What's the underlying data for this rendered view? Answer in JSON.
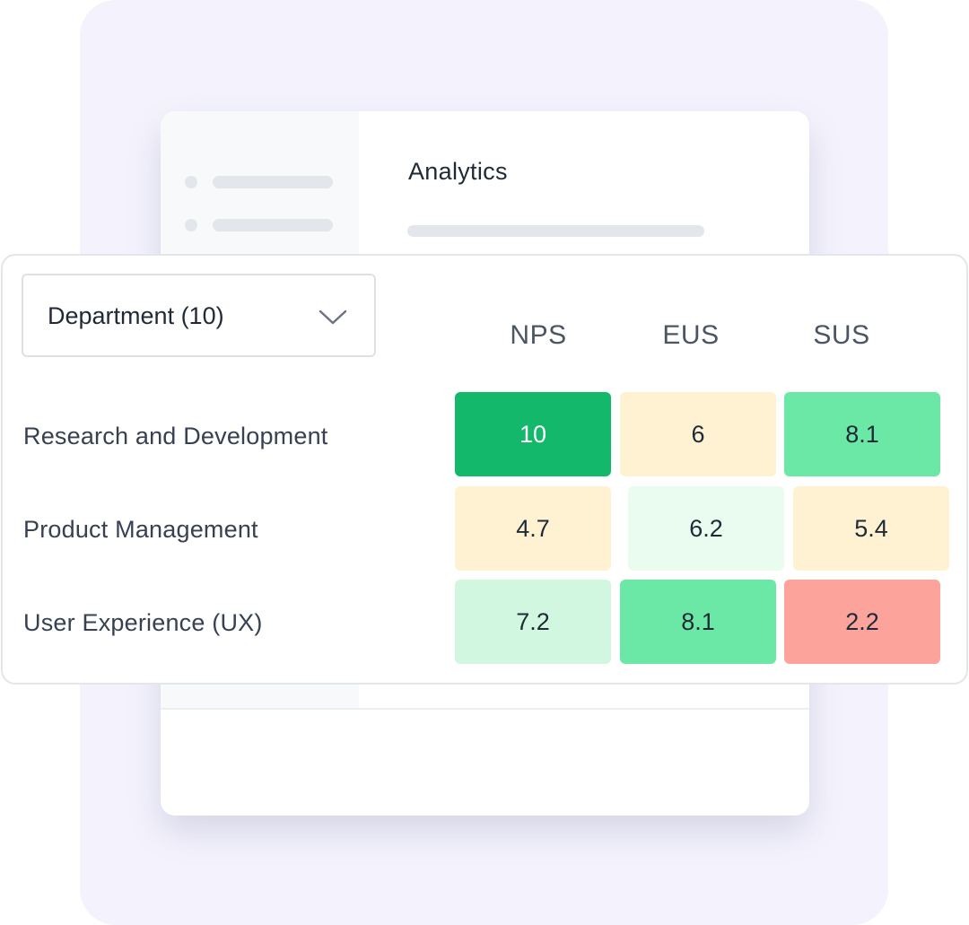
{
  "app": {
    "title": "Analytics"
  },
  "card": {
    "filter": {
      "label": "Department (10)",
      "icon": "chevron-down-icon"
    },
    "columns": [
      "NPS",
      "EUS",
      "SUS"
    ],
    "rows": [
      {
        "label": "Research and Development",
        "values": [
          "10",
          "6",
          "8.1"
        ]
      },
      {
        "label": "Product Management",
        "values": [
          "4.7",
          "6.2",
          "5.4"
        ]
      },
      {
        "label": "User Experience (UX)",
        "values": [
          "7.2",
          "8.1",
          "2.2"
        ]
      }
    ],
    "cell_colors": [
      [
        "#13b86a",
        "#fef2d2",
        "#6ce8a6"
      ],
      [
        "#fef2d2",
        "#eafbf0",
        "#fef2d2"
      ],
      [
        "#d2f7e0",
        "#6ce8a6",
        "#fca39b"
      ]
    ],
    "cell_text_colors": [
      [
        "#ffffff",
        "#1f2a37",
        "#1f2a37"
      ],
      [
        "#1f2a37",
        "#1f2a37",
        "#1f2a37"
      ],
      [
        "#1f2a37",
        "#1f2a37",
        "#1f2a37"
      ]
    ]
  },
  "colors": {
    "backdrop": "#f4f3fd",
    "sidebar": "#f8f9fa",
    "placeholder": "#e3e6ea"
  }
}
